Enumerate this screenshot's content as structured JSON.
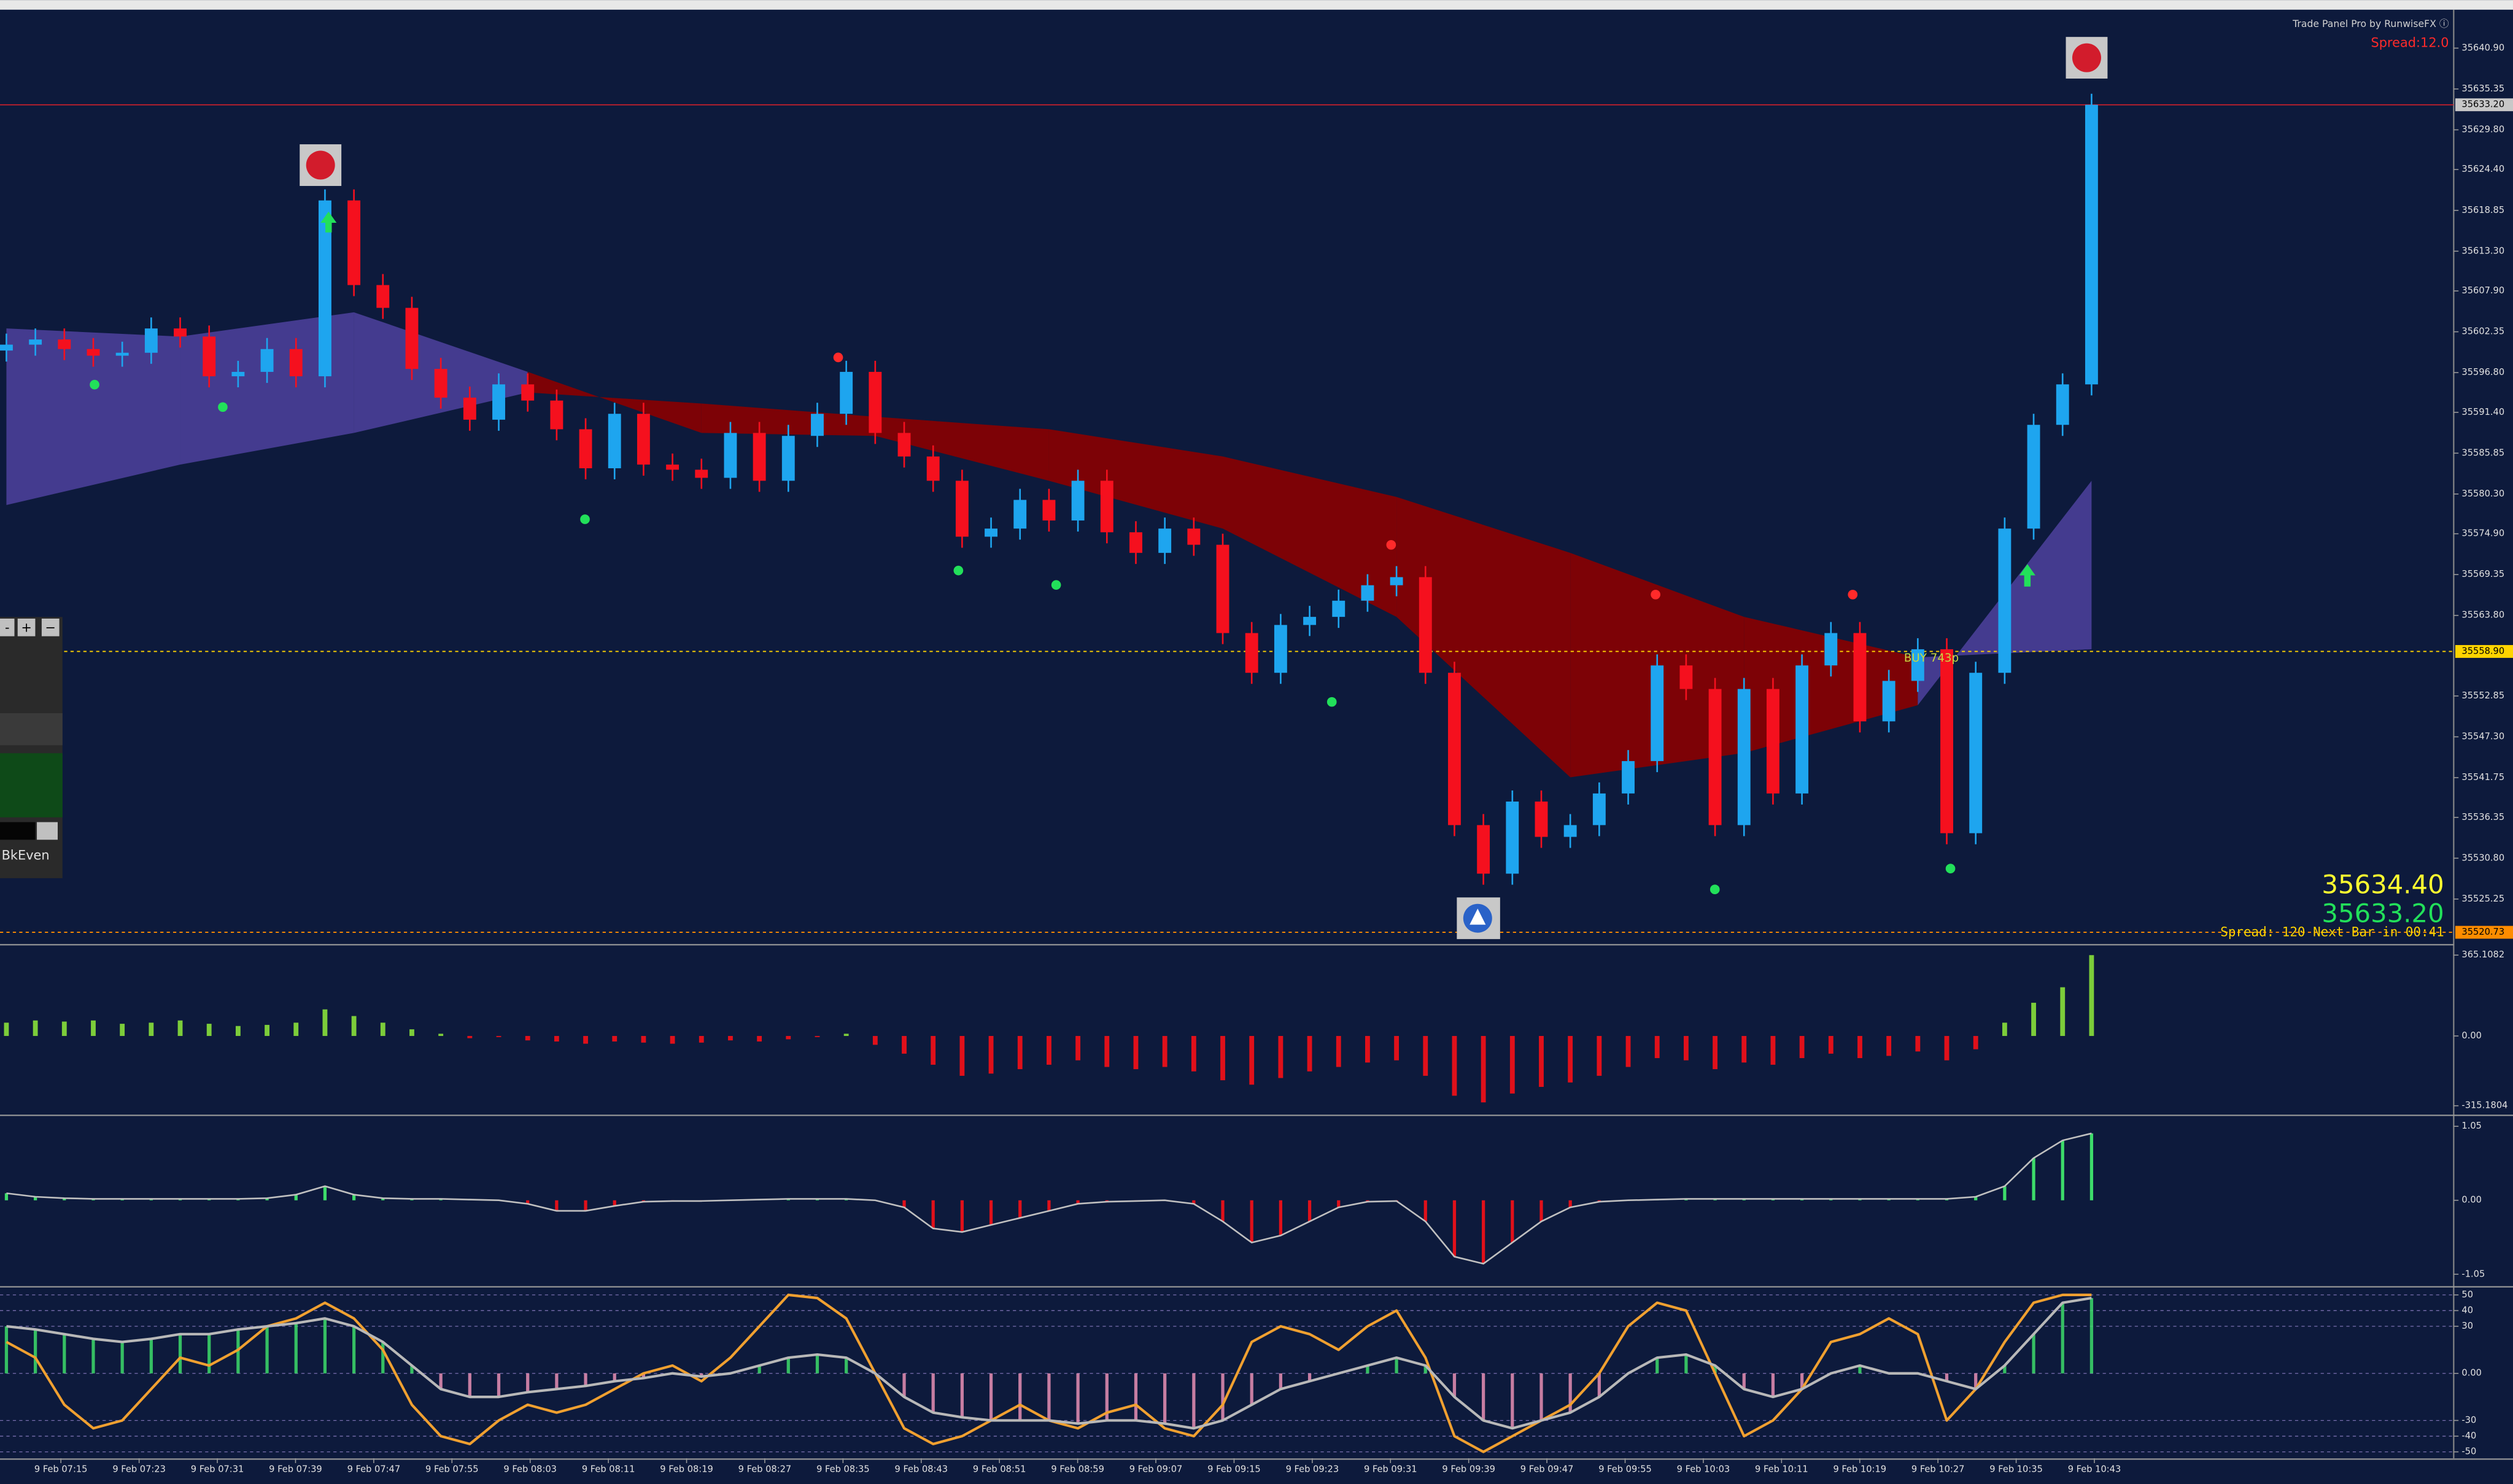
{
  "chart_data": [
    {
      "type": "candlestick",
      "open": [
        35599.8,
        35600.6,
        35601.3,
        35600.0,
        35599.1,
        35599.5,
        35602.8,
        35601.7,
        35596.3,
        35596.9,
        35600.0,
        35596.3,
        35620.2,
        35608.7,
        35605.6,
        35597.3,
        35593.4,
        35590.4,
        35595.2,
        35593.0,
        35589.1,
        35583.8,
        35591.2,
        35584.3,
        35583.6,
        35582.5,
        35588.6,
        35582.1,
        35588.2,
        35591.2,
        35596.9,
        35588.6,
        35585.4,
        35582.1,
        35574.5,
        35575.6,
        35579.5,
        35576.7,
        35582.1,
        35575.1,
        35572.3,
        35575.6,
        35573.4,
        35561.4,
        35556.0,
        35562.5,
        35563.6,
        35565.8,
        35567.9,
        35569.0,
        35556.0,
        35535.3,
        35528.7,
        35538.5,
        35533.7,
        35535.3,
        35539.6,
        35544.0,
        35557.0,
        35553.8,
        35535.3,
        35553.8,
        35539.6,
        35557.0,
        35561.4,
        35549.4,
        35554.9,
        35559.2,
        35534.2,
        35556.0,
        35575.6,
        35589.7,
        35595.2
      ],
      "high": [
        35602.1,
        35602.8,
        35602.8,
        35601.5,
        35601.0,
        35604.3,
        35604.3,
        35603.2,
        35598.4,
        35601.5,
        35601.5,
        35621.7,
        35621.7,
        35610.2,
        35607.1,
        35598.8,
        35594.9,
        35596.7,
        35596.7,
        35594.5,
        35590.6,
        35592.7,
        35592.7,
        35585.8,
        35585.1,
        35590.1,
        35590.1,
        35589.7,
        35592.7,
        35598.4,
        35598.4,
        35590.1,
        35586.9,
        35583.6,
        35577.1,
        35581.0,
        35581.0,
        35583.6,
        35583.6,
        35576.6,
        35577.1,
        35577.1,
        35574.9,
        35562.9,
        35564.0,
        35565.1,
        35567.3,
        35569.4,
        35570.5,
        35570.5,
        35557.5,
        35536.8,
        35540.0,
        35540.0,
        35536.8,
        35541.1,
        35545.5,
        35558.5,
        35558.5,
        35555.3,
        35555.3,
        35555.3,
        35558.5,
        35562.9,
        35562.9,
        35556.4,
        35560.7,
        35560.7,
        35557.5,
        35577.1,
        35591.2,
        35596.7,
        35634.7
      ],
      "low": [
        35598.3,
        35599.1,
        35598.5,
        35597.6,
        35597.6,
        35598.0,
        35600.2,
        35594.8,
        35594.8,
        35595.4,
        35594.8,
        35594.8,
        35607.2,
        35604.1,
        35595.8,
        35591.9,
        35588.9,
        35588.9,
        35591.5,
        35587.6,
        35582.3,
        35582.3,
        35582.8,
        35582.1,
        35581.0,
        35581.0,
        35580.6,
        35580.6,
        35586.7,
        35589.7,
        35587.1,
        35583.9,
        35580.6,
        35573.0,
        35573.0,
        35574.1,
        35575.2,
        35575.2,
        35573.6,
        35570.8,
        35570.8,
        35571.9,
        35559.9,
        35554.5,
        35554.5,
        35561.0,
        35562.1,
        35564.3,
        35566.4,
        35554.5,
        35533.8,
        35527.2,
        35527.2,
        35532.2,
        35532.2,
        35533.8,
        35538.1,
        35542.5,
        35552.3,
        35533.8,
        35533.8,
        35538.1,
        35538.1,
        35555.5,
        35547.9,
        35547.9,
        35553.4,
        35532.7,
        35532.7,
        35554.5,
        35574.1,
        35588.2,
        35593.7
      ],
      "close": [
        35600.6,
        35601.3,
        35600.0,
        35599.1,
        35599.5,
        35602.8,
        35601.7,
        35596.3,
        35596.9,
        35600.0,
        35596.3,
        35620.2,
        35608.7,
        35605.6,
        35597.3,
        35593.4,
        35590.4,
        35595.2,
        35593.0,
        35589.1,
        35583.8,
        35591.2,
        35584.3,
        35583.6,
        35582.5,
        35588.6,
        35582.1,
        35588.2,
        35591.2,
        35596.9,
        35588.6,
        35585.4,
        35582.1,
        35574.5,
        35575.6,
        35579.5,
        35576.7,
        35582.1,
        35575.1,
        35572.3,
        35575.6,
        35573.4,
        35561.4,
        35556.0,
        35562.5,
        35563.6,
        35565.8,
        35567.9,
        35569.0,
        35556.0,
        35535.3,
        35528.7,
        35538.5,
        35533.7,
        35535.3,
        35539.6,
        35544.0,
        35557.0,
        35553.8,
        35535.3,
        35553.8,
        35539.6,
        35557.0,
        35561.4,
        35549.4,
        35554.9,
        35559.2,
        35534.2,
        35556.0,
        35575.6,
        35589.7,
        35595.2,
        35633.2
      ],
      "up_color": "#1ea5ef",
      "down_color": "#f5101e",
      "cloud": {
        "x": [
          0,
          6,
          12,
          18,
          24,
          30,
          36,
          42,
          48,
          54,
          60,
          66,
          72
        ],
        "fast": [
          35602.8,
          35601.7,
          35605.0,
          35596.9,
          35588.6,
          35588.2,
          35582.1,
          35575.6,
          35563.6,
          35541.8,
          35545.1,
          35551.6,
          35582.1
        ],
        "slow": [
          35578.8,
          35584.3,
          35588.6,
          35594.1,
          35592.6,
          35590.8,
          35589.1,
          35585.4,
          35579.9,
          35572.3,
          35563.6,
          35558.1,
          35559.2
        ],
        "bull_color": "#4a3f98",
        "bear_color": "#8a0000"
      },
      "ylim": [
        35519.37,
        35645.69
      ],
      "yticks": [
        {
          "value": 35640.9,
          "label": "35640.90"
        },
        {
          "value": 35635.35,
          "label": "35635.35"
        },
        {
          "value": 35629.8,
          "label": "35629.80"
        },
        {
          "value": 35624.4,
          "label": "35624.40"
        },
        {
          "value": 35618.85,
          "label": "35618.85"
        },
        {
          "value": 35613.3,
          "label": "35613.30"
        },
        {
          "value": 35607.9,
          "label": "35607.90"
        },
        {
          "value": 35602.35,
          "label": "35602.35"
        },
        {
          "value": 35596.8,
          "label": "35596.80"
        },
        {
          "value": 35591.4,
          "label": "35591.40"
        },
        {
          "value": 35585.85,
          "label": "35585.85"
        },
        {
          "value": 35580.3,
          "label": "35580.30"
        },
        {
          "value": 35574.9,
          "label": "35574.90"
        },
        {
          "value": 35569.35,
          "label": "35569.35"
        },
        {
          "value": 35563.8,
          "label": "35563.80"
        },
        {
          "value": 35552.85,
          "label": "35552.85"
        },
        {
          "value": 35547.3,
          "label": "35547.30"
        },
        {
          "value": 35541.75,
          "label": "35541.75"
        },
        {
          "value": 35536.35,
          "label": "35536.35"
        },
        {
          "value": 35530.8,
          "label": "35530.80"
        },
        {
          "value": 35525.25,
          "label": "35525.25"
        }
      ],
      "price_lines": [
        {
          "value": 35633.2,
          "label": "35633.20",
          "color": "#c8202c",
          "label_bg": "#c8c8c8"
        },
        {
          "value": 35558.9,
          "label": "35558.90",
          "color": "#ffd400",
          "label_bg": "#ffd400"
        },
        {
          "value": 35520.73,
          "label": "35520.73",
          "color": "#ff8c00",
          "label_bg": "#ff8c00"
        }
      ],
      "x_labels": [
        "9 Feb 07:15",
        "9 Feb 07:23",
        "9 Feb 07:31",
        "9 Feb 07:39",
        "9 Feb 07:47",
        "9 Feb 07:55",
        "9 Feb 08:03",
        "9 Feb 08:11",
        "9 Feb 08:19",
        "9 Feb 08:27",
        "9 Feb 08:35",
        "9 Feb 08:43",
        "9 Feb 08:51",
        "9 Feb 08:59",
        "9 Feb 09:07",
        "9 Feb 09:15",
        "9 Feb 09:23",
        "9 Feb 09:31",
        "9 Feb 09:39",
        "9 Feb 09:47",
        "9 Feb 09:55",
        "9 Feb 10:03",
        "9 Feb 10:11",
        "9 Feb 10:19",
        "9 Feb 10:27",
        "9 Feb 10:35",
        "9 Feb 10:43"
      ]
    },
    {
      "type": "histogram",
      "values": [
        60,
        70,
        65,
        70,
        55,
        60,
        70,
        55,
        45,
        50,
        60,
        120,
        90,
        60,
        30,
        10,
        -10,
        -5,
        -20,
        -25,
        -35,
        -25,
        -30,
        -35,
        -30,
        -20,
        -25,
        -15,
        -5,
        10,
        -40,
        -80,
        -130,
        -180,
        -170,
        -150,
        -130,
        -110,
        -140,
        -150,
        -140,
        -160,
        -200,
        -220,
        -190,
        -160,
        -140,
        -120,
        -110,
        -180,
        -270,
        -300,
        -260,
        -230,
        -210,
        -180,
        -140,
        -100,
        -110,
        -150,
        -120,
        -130,
        -100,
        -80,
        -100,
        -90,
        -70,
        -110,
        -60,
        60,
        150,
        220,
        365.1082
      ],
      "pos_color": "#7ccd3a",
      "neg_color": "#e0101a",
      "ylim": [
        -351.4,
        401.3
      ],
      "yticks": [
        365.1082,
        {
          "value": 0,
          "label": "0.00"
        },
        -315.1804
      ]
    },
    {
      "type": "oscillator",
      "values": [
        0.1,
        0.05,
        0.03,
        0.02,
        0.02,
        0.02,
        0.02,
        0.02,
        0.02,
        0.03,
        0.08,
        0.2,
        0.08,
        0.03,
        0.02,
        0.02,
        0.01,
        0,
        -0.05,
        -0.15,
        -0.15,
        -0.08,
        -0.02,
        -0.01,
        -0.01,
        0,
        0.01,
        0.02,
        0.02,
        0.02,
        0,
        -0.1,
        -0.4,
        -0.45,
        -0.35,
        -0.25,
        -0.15,
        -0.05,
        -0.02,
        -0.01,
        0,
        -0.05,
        -0.3,
        -0.6,
        -0.5,
        -0.3,
        -0.1,
        -0.02,
        -0.01,
        -0.3,
        -0.8,
        -0.9,
        -0.6,
        -0.3,
        -0.1,
        -0.02,
        0,
        0.01,
        0.02,
        0.02,
        0.02,
        0.02,
        0.02,
        0.02,
        0.02,
        0.02,
        0.02,
        0.02,
        0.05,
        0.2,
        0.6,
        0.85,
        0.95
      ],
      "color": "#c0c0c0",
      "pos_color": "#3ddc6a",
      "neg_color": "#e0101a",
      "ylim": [
        -1.16,
        1.16
      ],
      "yticks": [
        1.05,
        {
          "value": 0,
          "label": "0.00"
        },
        -1.05
      ]
    },
    {
      "type": "line",
      "series": [
        {
          "color": "#f0a030",
          "values": [
            20,
            10,
            -20,
            -35,
            -30,
            -10,
            10,
            5,
            15,
            30,
            35,
            45,
            35,
            15,
            -20,
            -40,
            -45,
            -30,
            -20,
            -25,
            -20,
            -10,
            0,
            5,
            -5,
            10,
            30,
            50,
            48,
            35,
            0,
            -35,
            -45,
            -40,
            -30,
            -20,
            -30,
            -35,
            -25,
            -20,
            -35,
            -40,
            -20,
            20,
            30,
            25,
            15,
            30,
            40,
            10,
            -40,
            -50,
            -40,
            -30,
            -20,
            0,
            30,
            45,
            40,
            0,
            -40,
            -30,
            -10,
            20,
            25,
            35,
            25,
            -30,
            -10,
            20,
            45,
            50,
            50
          ]
        },
        {
          "color": "#b8b8b8",
          "values": [
            30,
            28,
            25,
            22,
            20,
            22,
            25,
            25,
            28,
            30,
            32,
            35,
            30,
            20,
            5,
            -10,
            -15,
            -15,
            -12,
            -10,
            -8,
            -5,
            -3,
            0,
            -2,
            0,
            5,
            10,
            12,
            10,
            0,
            -15,
            -25,
            -28,
            -30,
            -30,
            -30,
            -32,
            -30,
            -30,
            -32,
            -35,
            -30,
            -20,
            -10,
            -5,
            0,
            5,
            10,
            5,
            -15,
            -30,
            -35,
            -30,
            -25,
            -15,
            0,
            10,
            12,
            5,
            -10,
            -15,
            -10,
            0,
            5,
            0,
            0,
            -5,
            -10,
            5,
            25,
            45,
            48
          ]
        }
      ],
      "pos_color": "#3ddc6a",
      "neg_color": "#e88fb4",
      "ylim": [
        -54.1,
        53.1
      ],
      "yticks": [
        50,
        40,
        30,
        {
          "value": 0,
          "label": "0.00"
        },
        -30,
        -40,
        -50
      ]
    }
  ],
  "overlay": {
    "panel_credit": "Trade Panel Pro by RunwiseFX ⓘ",
    "spread_top": "Spread:12.0",
    "ask": "35634.40",
    "bid": "35633.20",
    "status": "Spread: 120 Next Bar in 00:41",
    "signal": "BUY 743p"
  },
  "trade_panel": {
    "buttons": [
      "-",
      "+",
      "−"
    ],
    "label": "BkEven"
  }
}
